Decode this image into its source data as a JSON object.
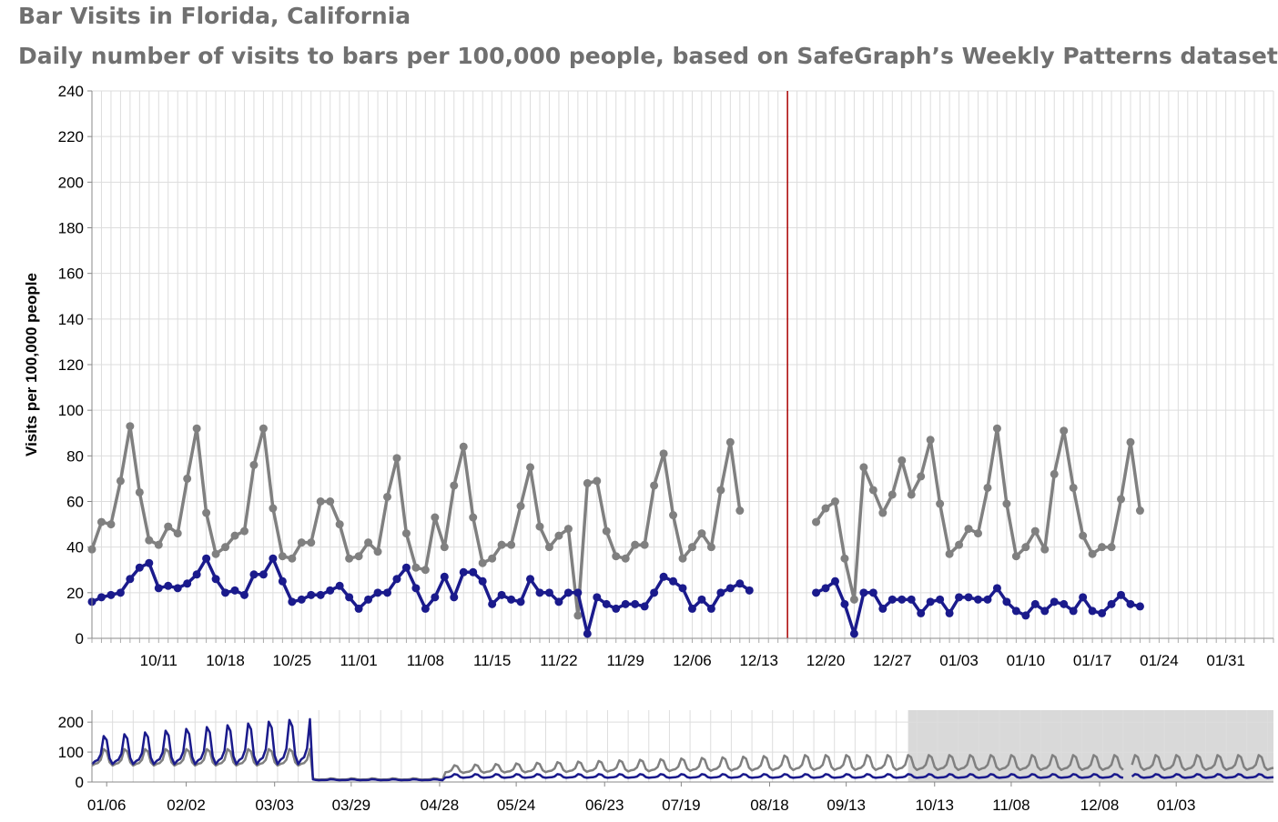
{
  "title": "Bar Visits in Florida, California",
  "subtitle": "Daily number of visits to bars per 100,000 people, based on SafeGraph’s Weekly Patterns dataset",
  "colors": {
    "series_a": "#808080",
    "series_b": "#1a1a8c",
    "marker_line": "#aa0000",
    "grid": "#dddddd",
    "brush": "#d9d9d9"
  },
  "chart_data": [
    {
      "type": "line",
      "ylabel": "Visits per 100,000 people",
      "ylim": [
        0,
        240
      ],
      "y_ticks": [
        0,
        20,
        40,
        60,
        80,
        100,
        120,
        140,
        160,
        180,
        200,
        220,
        240
      ],
      "x_range": [
        "2020-10-04",
        "2021-02-05"
      ],
      "x_ticks": [
        "10/11",
        "10/18",
        "10/25",
        "11/01",
        "11/08",
        "11/15",
        "11/22",
        "11/29",
        "12/06",
        "12/13",
        "12/20",
        "12/27",
        "01/03",
        "01/10",
        "01/17",
        "01/24",
        "01/31"
      ],
      "vertical_rule_date": "2020-12-16",
      "series": [
        {
          "color": "#808080",
          "segments": [
            {
              "start": "2020-10-04",
              "values": [
                39,
                51,
                50,
                69,
                93,
                64,
                43,
                41,
                49,
                46,
                70,
                92,
                55,
                37,
                40,
                45,
                47,
                76,
                92,
                57,
                36,
                35,
                42,
                42,
                60,
                60,
                50,
                35,
                36,
                42,
                38,
                62,
                79,
                46,
                31,
                30,
                53,
                40,
                67,
                84,
                53,
                33,
                35,
                41,
                41,
                58,
                75,
                49,
                40,
                45,
                48,
                10,
                68,
                69,
                47,
                36,
                35,
                41,
                41,
                67,
                81,
                54,
                35,
                40,
                46,
                40,
                65,
                86,
                56
              ]
            },
            {
              "start": "2020-12-19",
              "values": [
                51,
                57,
                60,
                35,
                17,
                75,
                65,
                55,
                63,
                78,
                63,
                71,
                87,
                59,
                37,
                41,
                48,
                46,
                66,
                92,
                59,
                36,
                40,
                47,
                39,
                72,
                91,
                66,
                45,
                37,
                40,
                40,
                61,
                86,
                56
              ]
            }
          ]
        },
        {
          "color": "#1a1a8c",
          "segments": [
            {
              "start": "2020-10-04",
              "values": [
                16,
                18,
                19,
                20,
                26,
                31,
                33,
                22,
                23,
                22,
                24,
                28,
                35,
                26,
                20,
                21,
                19,
                28,
                28,
                35,
                25,
                16,
                17,
                19,
                19,
                21,
                23,
                18,
                13,
                17,
                20,
                20,
                26,
                31,
                22,
                13,
                18,
                27,
                18,
                29,
                29,
                25,
                15,
                19,
                17,
                16,
                26,
                20,
                20,
                16,
                20,
                20,
                2,
                18,
                15,
                13,
                15,
                15,
                14,
                20,
                27,
                25,
                22,
                13,
                17,
                13,
                20,
                22,
                24,
                21
              ]
            },
            {
              "start": "2020-12-19",
              "values": [
                20,
                22,
                25,
                15,
                2,
                20,
                20,
                13,
                17,
                17,
                17,
                11,
                16,
                17,
                11,
                18,
                18,
                17,
                17,
                22,
                16,
                12,
                10,
                15,
                12,
                16,
                15,
                12,
                18,
                12,
                11,
                15,
                19,
                15,
                14
              ]
            }
          ]
        }
      ]
    },
    {
      "type": "line",
      "role": "overview",
      "y_ticks": [
        0,
        100,
        200
      ],
      "ylim": [
        0,
        240
      ],
      "x_range": [
        "2020-01-01",
        "2021-02-05"
      ],
      "x_ticks": [
        "01/06",
        "03/03",
        "04/28",
        "06/23",
        "08/18",
        "10/13",
        "12/08",
        "02/02",
        "03/29",
        "05/24",
        "07/19",
        "09/13",
        "11/08",
        "01/03"
      ],
      "brush_range": [
        "2020-10-04",
        "2021-02-05"
      ]
    }
  ]
}
